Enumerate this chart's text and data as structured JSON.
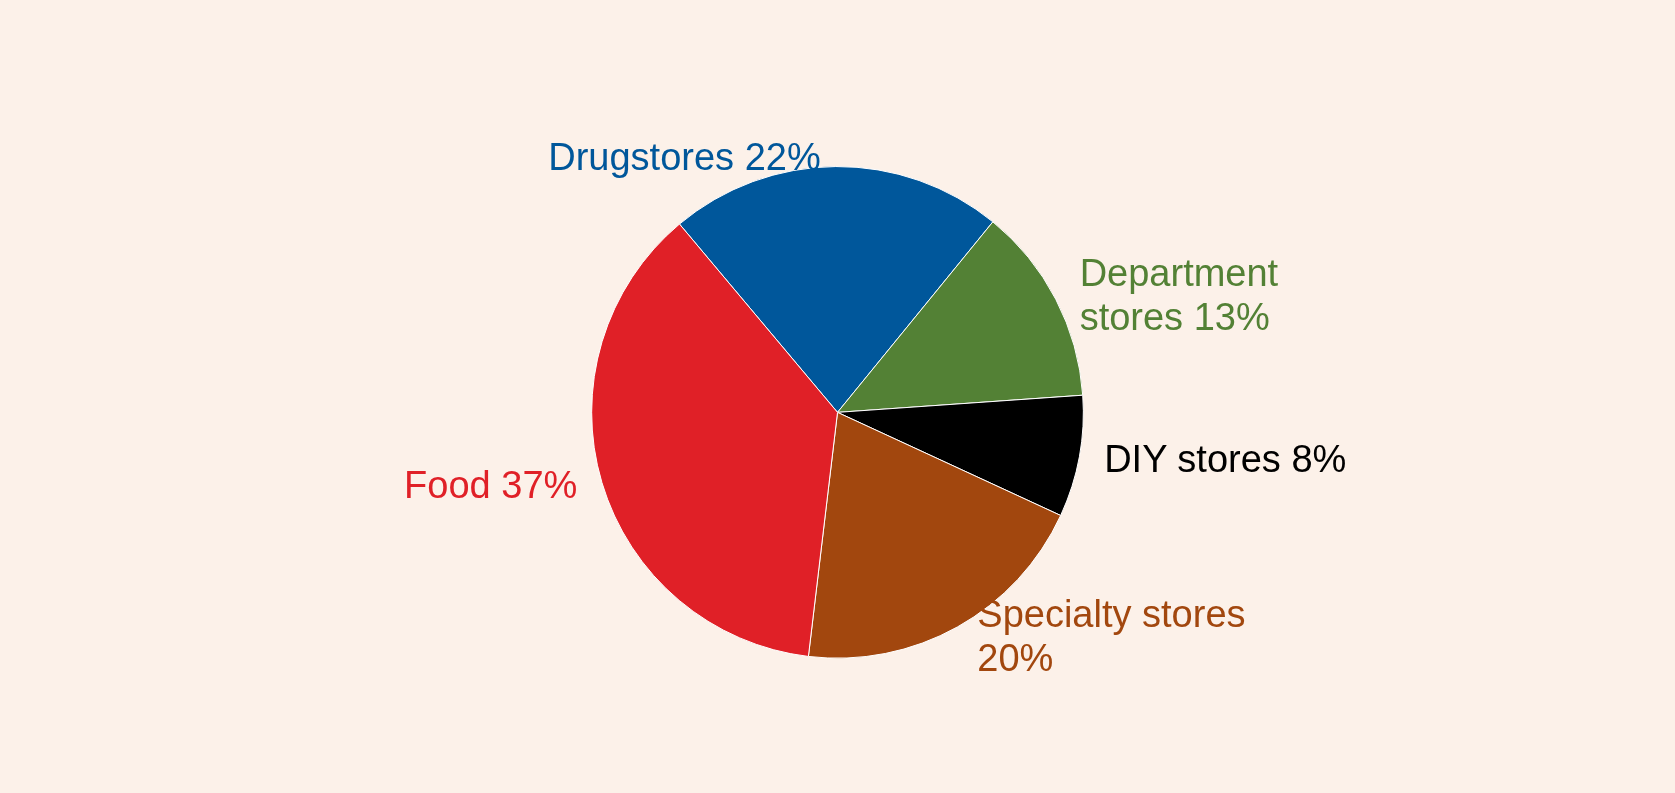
{
  "chart_data": {
    "type": "pie",
    "categories": [
      "Drugstores",
      "Department stores",
      "DIY stores",
      "Specialty stores",
      "Food"
    ],
    "values": [
      22,
      13,
      8,
      20,
      37
    ],
    "value_labels": [
      "22%",
      "13%",
      "8%",
      "20%",
      "37%"
    ],
    "colors": [
      "#00579b",
      "#538135",
      "#000000",
      "#a2470e",
      "#e02027"
    ],
    "legend": false
  }
}
